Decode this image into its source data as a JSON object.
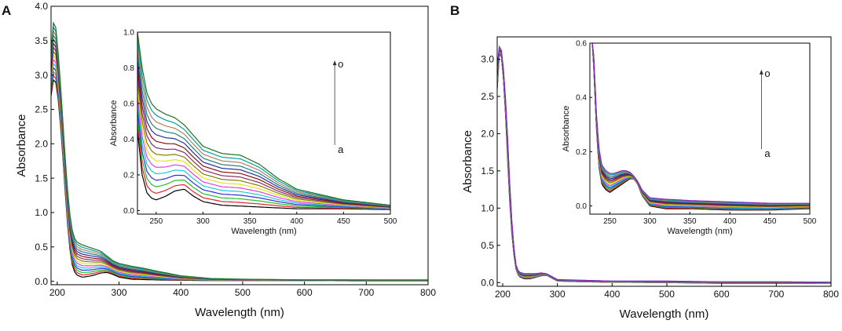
{
  "chart_data": [
    {
      "panel_label": "A",
      "type": "line",
      "xlabel": "Wavelength (nm)",
      "ylabel": "Absorbance",
      "xlim": [
        190,
        800
      ],
      "ylim": [
        -0.05,
        4.0
      ],
      "xticks": [
        200,
        300,
        400,
        500,
        600,
        700,
        800
      ],
      "yticks": [
        0.0,
        0.5,
        1.0,
        1.5,
        2.0,
        2.5,
        3.0,
        3.5,
        4.0
      ],
      "ytick_labels": [
        "0.0",
        "0.5",
        "1.0",
        "1.5",
        "2.0",
        "2.5",
        "3.0",
        "3.5",
        "4.0"
      ],
      "series_colors": [
        "#000000",
        "#e8202a",
        "#1fbf2a",
        "#3030d0",
        "#18c8e0",
        "#e040e0",
        "#e8e020",
        "#808000",
        "#8a2a6a",
        "#8a1010",
        "#2030a0",
        "#208080",
        "#b08060",
        "#00a0a0",
        "#207020"
      ],
      "main": {
        "x": [
          190,
          195,
          200,
          205,
          210,
          215,
          220,
          225,
          230,
          240,
          250,
          260,
          270,
          280,
          290,
          300,
          320,
          340,
          360,
          400,
          450,
          500,
          600,
          700,
          800
        ],
        "series": [
          {
            "name": "a",
            "values": [
              2.7,
              3.0,
              2.8,
              2.3,
              1.7,
              1.0,
              0.5,
              0.2,
              0.1,
              0.06,
              0.07,
              0.09,
              0.12,
              0.13,
              0.1,
              0.06,
              0.03,
              0.025,
              0.02,
              0.015,
              0.01,
              0.01,
              0.01,
              0.005,
              0.005
            ]
          },
          {
            "name": "o",
            "values": [
              3.3,
              3.9,
              3.5,
              2.9,
              2.2,
              1.5,
              1.0,
              0.7,
              0.58,
              0.53,
              0.5,
              0.47,
              0.44,
              0.37,
              0.3,
              0.26,
              0.22,
              0.19,
              0.15,
              0.08,
              0.04,
              0.03,
              0.02,
              0.02,
              0.02
            ]
          }
        ]
      },
      "inset": {
        "xlabel": "Wavelength (nm)",
        "ylabel": "Absorbance",
        "xlim": [
          230,
          500
        ],
        "ylim": [
          -0.02,
          1.0
        ],
        "xticks": [
          250,
          300,
          350,
          400,
          450,
          500
        ],
        "yticks": [
          0.0,
          0.2,
          0.4,
          0.6,
          0.8,
          1.0
        ],
        "ytick_labels": [
          "0.0",
          "0.2",
          "0.4",
          "0.6",
          "0.8",
          "1.0"
        ],
        "x": [
          230,
          235,
          240,
          245,
          250,
          260,
          270,
          280,
          290,
          300,
          320,
          340,
          360,
          380,
          400,
          450,
          500
        ],
        "series": [
          {
            "name": "a",
            "values": [
              0.45,
              0.2,
              0.1,
              0.07,
              0.06,
              0.08,
              0.11,
              0.12,
              0.08,
              0.05,
              0.03,
              0.025,
              0.02,
              0.015,
              0.01,
              0.01,
              0.005
            ]
          },
          {
            "name": "o",
            "values": [
              1.0,
              0.8,
              0.66,
              0.6,
              0.57,
              0.54,
              0.52,
              0.48,
              0.42,
              0.36,
              0.32,
              0.31,
              0.26,
              0.18,
              0.12,
              0.06,
              0.03
            ]
          }
        ],
        "annotation_top": "o",
        "annotation_bottom": "a"
      }
    },
    {
      "panel_label": "B",
      "type": "line",
      "xlabel": "Wavelength (nm)",
      "ylabel": "Absorbance",
      "xlim": [
        190,
        800
      ],
      "ylim": [
        -0.05,
        3.3
      ],
      "xticks": [
        200,
        300,
        400,
        500,
        600,
        700,
        800
      ],
      "yticks": [
        0.0,
        0.5,
        1.0,
        1.5,
        2.0,
        2.5,
        3.0
      ],
      "ytick_labels": [
        "0.0",
        "0.5",
        "1.0",
        "1.5",
        "2.0",
        "2.5",
        "3.0"
      ],
      "series_colors": [
        "#000000",
        "#e8202a",
        "#1fbf2a",
        "#3030d0",
        "#18c8e0",
        "#e040e0",
        "#e8e020",
        "#808000",
        "#8a2a6a",
        "#8a1010",
        "#2030a0",
        "#208080",
        "#b08060",
        "#00a0a0",
        "#9020c0"
      ],
      "main": {
        "x": [
          190,
          195,
          200,
          205,
          210,
          215,
          220,
          225,
          230,
          240,
          250,
          260,
          270,
          280,
          290,
          300,
          350,
          400,
          500,
          600,
          700,
          800
        ],
        "series": [
          {
            "name": "a",
            "values": [
              2.6,
              3.2,
              2.9,
              2.3,
              1.5,
              0.8,
              0.4,
              0.15,
              0.08,
              0.05,
              0.05,
              0.07,
              0.09,
              0.1,
              0.06,
              0.02,
              0.01,
              0.005,
              0.0,
              -0.01,
              -0.01,
              -0.01
            ]
          },
          {
            "name": "o",
            "values": [
              2.9,
              3.25,
              3.0,
              2.5,
              1.8,
              1.0,
              0.5,
              0.2,
              0.14,
              0.12,
              0.12,
              0.12,
              0.13,
              0.12,
              0.08,
              0.04,
              0.03,
              0.02,
              0.02,
              0.01,
              0.01,
              0.005
            ]
          }
        ]
      },
      "inset": {
        "xlabel": "Wavelength (nm)",
        "ylabel": "Absorbance",
        "xlim": [
          225,
          500
        ],
        "ylim": [
          -0.03,
          0.6
        ],
        "xticks": [
          250,
          300,
          350,
          400,
          450,
          500
        ],
        "yticks": [
          0.0,
          0.2,
          0.4,
          0.6
        ],
        "ytick_labels": [
          "0.0",
          "0.2",
          "0.4",
          "0.6"
        ],
        "x": [
          228,
          230,
          233,
          236,
          240,
          245,
          250,
          255,
          260,
          265,
          270,
          275,
          280,
          285,
          290,
          300,
          320,
          350,
          400,
          450,
          500
        ],
        "series": [
          {
            "name": "a",
            "values": [
              0.6,
              0.5,
              0.3,
              0.15,
              0.08,
              0.06,
              0.05,
              0.06,
              0.07,
              0.08,
              0.09,
              0.1,
              0.1,
              0.08,
              0.04,
              0.0,
              -0.01,
              -0.01,
              -0.015,
              -0.015,
              -0.01
            ]
          },
          {
            "name": "o",
            "values": [
              0.6,
              0.55,
              0.35,
              0.22,
              0.15,
              0.13,
              0.12,
              0.12,
              0.125,
              0.13,
              0.13,
              0.125,
              0.11,
              0.09,
              0.06,
              0.03,
              0.025,
              0.02,
              0.015,
              0.01,
              0.01
            ]
          }
        ],
        "annotation_top": "o",
        "annotation_bottom": "a"
      }
    }
  ]
}
